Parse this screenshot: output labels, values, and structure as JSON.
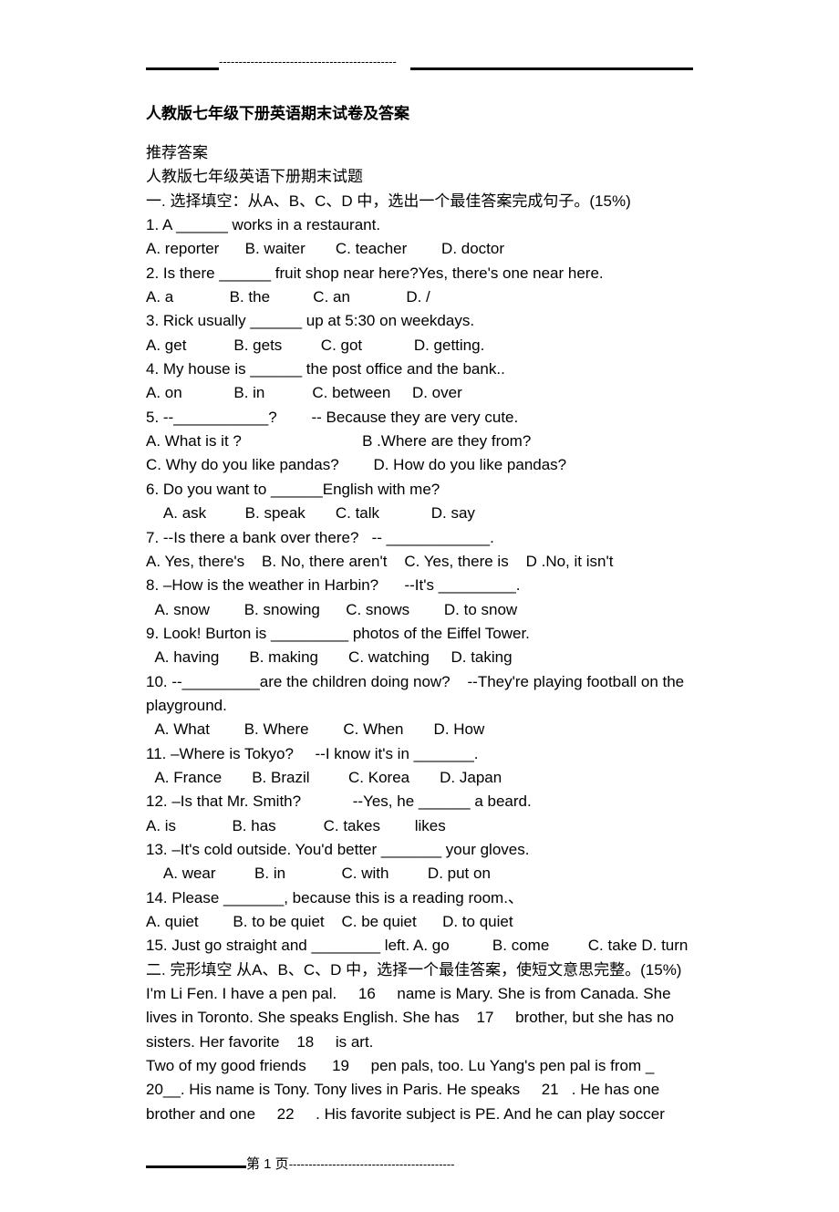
{
  "doc_title": "人教版七年级下册英语期末试卷及答案",
  "intro_lines": [
    "推荐答案",
    "人教版七年级英语下册期末试题",
    "一. 选择填空：从A、B、C、D 中，选出一个最佳答案完成句子。(15%)"
  ],
  "questions": [
    {
      "stem": "1. A ______ works in a restaurant.",
      "opts": "A. reporter      B. waiter       C. teacher        D. doctor"
    },
    {
      "stem": "2. Is there ______ fruit shop near here?Yes, there's one near here.",
      "opts": "A. a             B. the          C. an             D. /"
    },
    {
      "stem": "3. Rick usually ______ up at 5:30 on weekdays.",
      "opts": "A. get           B. gets         C. got            D. getting."
    },
    {
      "stem": "4. My house is ______ the post office and the bank..",
      "opts": "A. on            B. in           C. between     D. over"
    },
    {
      "stem": "5. --___________?        -- Because they are very cute.",
      "opts": "A. What is it ?                            B .Where are they from?",
      "opts2": "C. Why do you like pandas?        D. How do you like pandas?"
    },
    {
      "stem": "6. Do you want to ______English with me?",
      "opts": "    A. ask         B. speak       C. talk            D. say",
      "indent": false
    },
    {
      "stem": "7. --Is there a bank over there?   -- ____________.",
      "opts": "A. Yes, there's    B. No, there aren't    C. Yes, there is    D .No, it isn't"
    },
    {
      "stem": "8. –How is the weather in Harbin?      --It's _________.",
      "opts": "  A. snow        B. snowing      C. snows        D. to snow"
    },
    {
      "stem": "9. Look! Burton is _________ photos of the Eiffel Tower.",
      "opts": "  A. having       B. making       C. watching     D. taking"
    },
    {
      "stem": "10. --_________are the children doing now?    --They're playing football on the playground.",
      "opts": "  A. What        B. Where        C. When       D. How"
    },
    {
      "stem": "11. –Where is Tokyo?     --I know it's in _______.",
      "opts": "  A. France       B. Brazil         C. Korea       D. Japan"
    },
    {
      "stem": "12. –Is that Mr. Smith?            --Yes, he ______ a beard.",
      "opts": "A. is             B. has           C. takes        likes"
    },
    {
      "stem": "13. –It's cold outside. You'd better _______ your gloves.",
      "opts": "    A. wear         B. in             C. with         D. put on"
    },
    {
      "stem": "14. Please _______, because this is a reading room.、",
      "opts": "A. quiet        B. to be quiet    C. be quiet      D. to quiet"
    },
    {
      "stem": "15. Just go straight and ________ left. A. go          B. come         C. take D. turn",
      "opts": ""
    }
  ],
  "section2_header": "二. 完形填空 从A、B、C、D 中，选择一个最佳答案，使短文意思完整。(15%)",
  "passage": [
    "I'm Li Fen. I have a pen pal.     16     name is Mary. She is from Canada. She lives in Toronto. She speaks English. She has    17     brother, but she has no sisters. Her favorite    18     is art.",
    "Two of my good friends      19     pen pals, too. Lu Yang's pen pal is from _  20__. His name is Tony. Tony lives in Paris. He speaks     21   . He has one brother and one     22     . His favorite subject is PE. And he can play soccer"
  ],
  "footer_label": "第  1  页",
  "top_dashes": "---------------------------------------------",
  "footer_dashes": "------------------------------------------"
}
